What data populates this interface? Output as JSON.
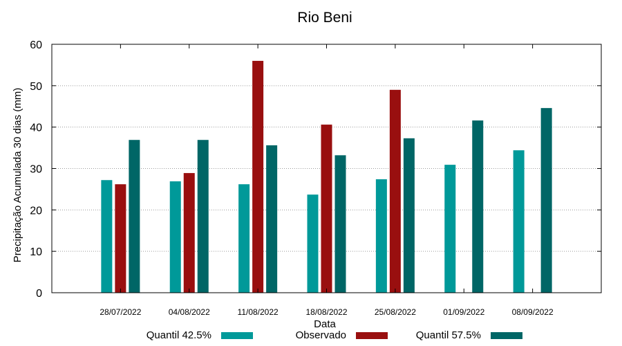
{
  "chart_data": {
    "type": "bar",
    "title": "Rio Beni",
    "xlabel": "Data",
    "ylabel": "Precipitação Acumulada 30 dias (mm)",
    "ylim": [
      0,
      60
    ],
    "yticks": [
      0,
      10,
      20,
      30,
      40,
      50,
      60
    ],
    "grid": true,
    "legend_position": "bottom",
    "categories": [
      "28/07/2022",
      "04/08/2022",
      "11/08/2022",
      "18/08/2022",
      "25/08/2022",
      "01/09/2022",
      "08/09/2022"
    ],
    "series": [
      {
        "name": "Quantil 42.5%",
        "color": "#009999",
        "values": [
          27.2,
          26.9,
          26.2,
          23.7,
          27.4,
          30.9,
          34.4
        ]
      },
      {
        "name": "Observado",
        "color": "#990f0f",
        "values": [
          26.2,
          28.9,
          56.0,
          40.6,
          49.0,
          null,
          null
        ]
      },
      {
        "name": "Quantil 57.5%",
        "color": "#006666",
        "values": [
          36.9,
          36.9,
          35.6,
          33.2,
          37.3,
          41.6,
          44.6
        ]
      }
    ]
  }
}
